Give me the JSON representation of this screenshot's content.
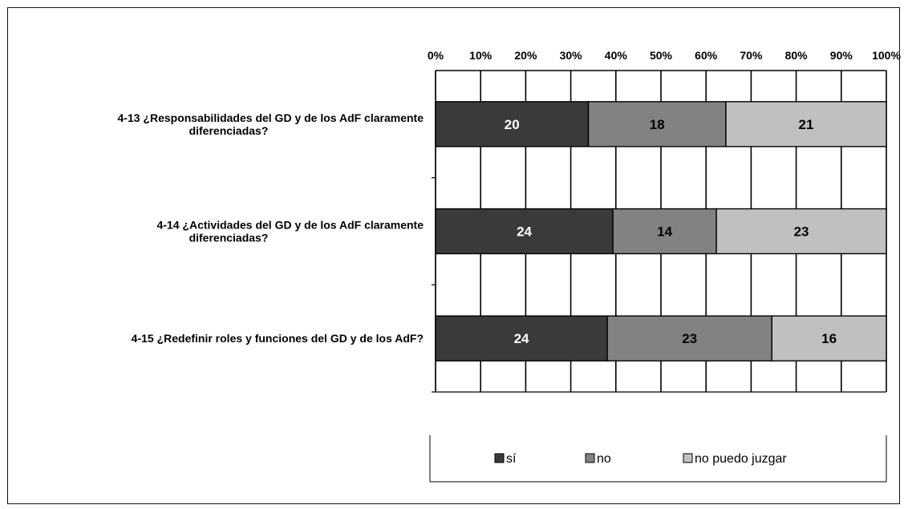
{
  "chart_data": {
    "type": "bar",
    "orientation": "horizontal",
    "stacking": "percent",
    "categories": [
      [
        "4-13 ¿Responsabilidades  del GD y de los AdF claramente",
        "diferenciadas?"
      ],
      [
        "4-14 ¿Actividades del GD y de los AdF claramente",
        "diferenciadas?"
      ],
      [
        "4-15 ¿Redefinir roles y funciones del GD y de los AdF?"
      ]
    ],
    "series": [
      {
        "name": "sí",
        "values": [
          20,
          24,
          24
        ],
        "color": "#3a3a3a",
        "label_color": "#ffffff"
      },
      {
        "name": "no",
        "values": [
          18,
          14,
          23
        ],
        "color": "#828282",
        "label_color": "#000000"
      },
      {
        "name": "no puedo juzgar",
        "values": [
          21,
          23,
          16
        ],
        "color": "#c0c0c0",
        "label_color": "#000000"
      }
    ],
    "x_ticks": [
      "0%",
      "10%",
      "20%",
      "30%",
      "40%",
      "50%",
      "60%",
      "70%",
      "80%",
      "90%",
      "100%"
    ],
    "xlim": [
      0,
      100
    ],
    "x_axis_position": "top",
    "grid": true,
    "legend_position": "bottom"
  }
}
